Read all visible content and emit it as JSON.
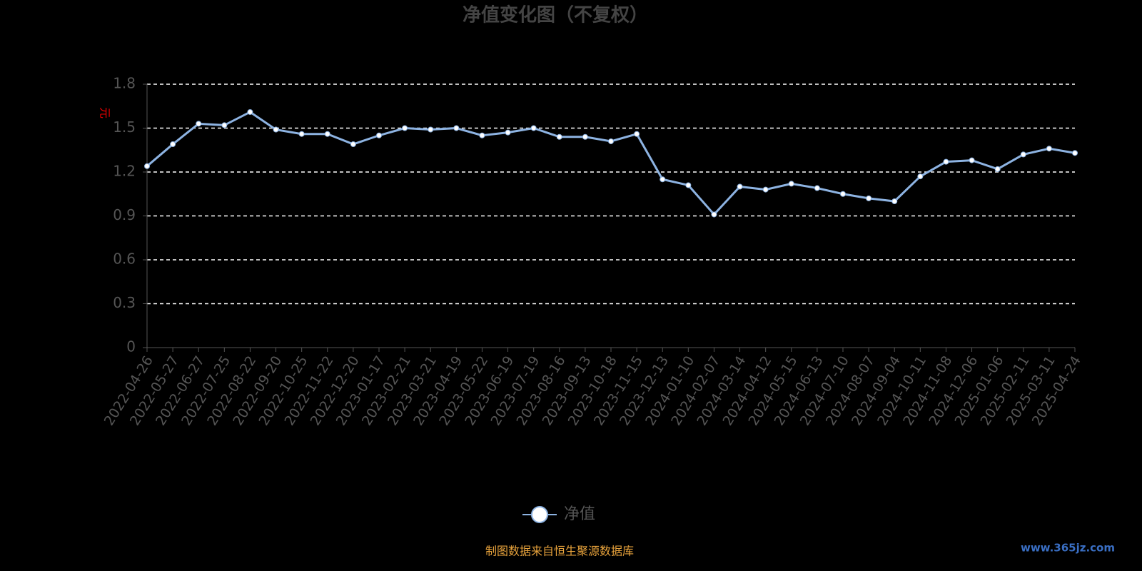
{
  "chart_data": {
    "type": "line",
    "title": "净值变化图（不复权）",
    "y_label": "元",
    "categories": [
      "2022-04-26",
      "2022-05-27",
      "2022-06-27",
      "2022-07-25",
      "2022-08-22",
      "2022-09-20",
      "2022-10-25",
      "2022-11-22",
      "2022-12-20",
      "2023-01-17",
      "2023-02-21",
      "2023-03-21",
      "2023-04-19",
      "2023-05-22",
      "2023-06-19",
      "2023-07-19",
      "2023-08-16",
      "2023-09-13",
      "2023-10-18",
      "2023-11-15",
      "2023-12-13",
      "2024-01-10",
      "2024-02-07",
      "2024-03-14",
      "2024-04-12",
      "2024-05-15",
      "2024-06-13",
      "2024-07-10",
      "2024-08-07",
      "2024-09-04",
      "2024-10-11",
      "2024-11-08",
      "2024-12-06",
      "2025-01-06",
      "2025-02-11",
      "2025-03-11",
      "2025-04-24"
    ],
    "series": [
      {
        "name": "净值",
        "color": "#8db3e2",
        "values": [
          1.24,
          1.39,
          1.53,
          1.52,
          1.61,
          1.49,
          1.46,
          1.46,
          1.39,
          1.45,
          1.5,
          1.49,
          1.5,
          1.45,
          1.47,
          1.5,
          1.44,
          1.44,
          1.41,
          1.46,
          1.15,
          1.11,
          0.91,
          1.1,
          1.08,
          1.12,
          1.09,
          1.05,
          1.02,
          1.0,
          1.17,
          1.27,
          1.28,
          1.22,
          1.32,
          1.36,
          1.33
        ]
      }
    ],
    "ylim": [
      0,
      1.8
    ],
    "yticks": [
      0,
      0.3,
      0.6,
      0.9,
      1.2,
      1.5,
      1.8
    ],
    "grid": true,
    "source": "制图数据来自恒生聚源数据库",
    "watermark": "www.365jz.com"
  }
}
